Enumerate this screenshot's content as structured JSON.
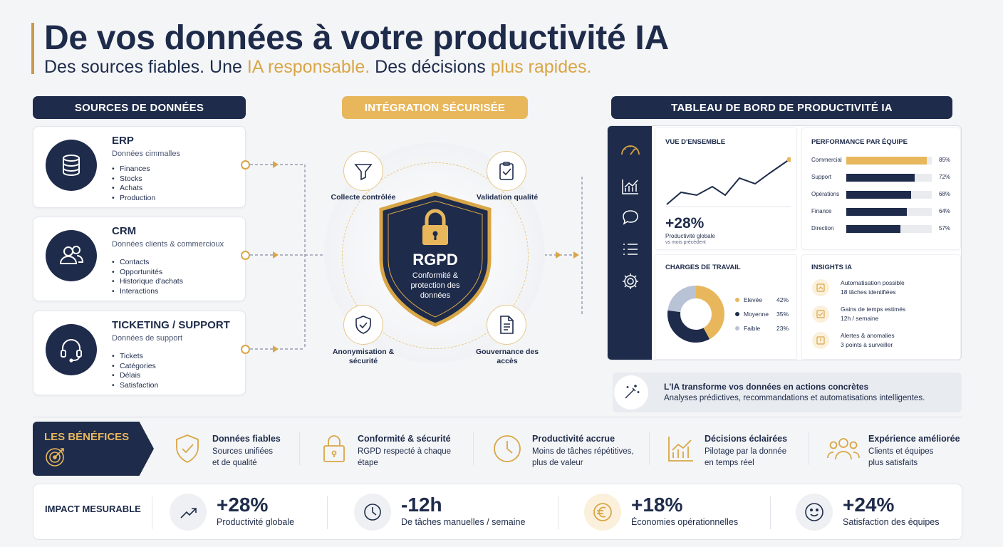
{
  "header": {
    "title": "De vos données à votre productivité IA",
    "subtitle_part1": "Des sources fiables. Une ",
    "subtitle_highlight1": "IA responsable.",
    "subtitle_part2": " Des décisions ",
    "subtitle_highlight2": "plus rapides.",
    "colors": {
      "navy": "#1e2b4a",
      "gold": "#d9a646"
    }
  },
  "sections": {
    "sources": "SOURCES DE DONNÉES",
    "integration": "INTÉGRATION SÉCURISÉE",
    "dashboard": "TABLEAU DE BORD DE PRODUCTIVITÉ IA"
  },
  "sources": [
    {
      "title": "ERP",
      "subtitle": "Données cimmalles",
      "icon": "database-icon",
      "items": [
        "Finances",
        "Stocks",
        "Achats",
        "Production"
      ]
    },
    {
      "title": "CRM",
      "subtitle": "Données clients & commercioux",
      "icon": "users-icon",
      "items": [
        "Contacts",
        "Opportunités",
        "Historique d'achats",
        "Interactions"
      ]
    },
    {
      "title": "TICKETING / SUPPORT",
      "subtitle": "Données de support",
      "icon": "headset-icon",
      "items": [
        "Tickets",
        "Catégories",
        "Délais",
        "Satisfaction"
      ]
    }
  ],
  "integration": {
    "shield_title": "RGPD",
    "shield_text": "Conformité & protection des données",
    "steps": [
      {
        "label": "Collecte contrôlée",
        "icon": "filter-icon"
      },
      {
        "label": "Validation qualité",
        "icon": "clipboard-check-icon"
      },
      {
        "label": "Anonymisation & sécurité",
        "icon": "shield-check-icon"
      },
      {
        "label": "Gouvernance des accès",
        "icon": "document-icon"
      }
    ]
  },
  "dashboard": {
    "overview": {
      "title": "VUE D'ENSEMBLE",
      "value": "+28%",
      "label": "Productivité globale",
      "sublabel": "vs mois précédent"
    },
    "performance": {
      "title": "PERFORMANCE PAR ÉQUIPE",
      "teams": [
        {
          "name": "Commercial",
          "value": 85,
          "label": "85%"
        },
        {
          "name": "Support",
          "value": 72,
          "label": "72%"
        },
        {
          "name": "Opérations",
          "value": 68,
          "label": "68%"
        },
        {
          "name": "Finance",
          "value": 64,
          "label": "64%"
        },
        {
          "name": "Direction",
          "value": 57,
          "label": "57%"
        }
      ]
    },
    "workload": {
      "title": "CHARGES DE TRAVAIL",
      "segments": [
        {
          "name": "Elevée",
          "value": 42,
          "label": "42%",
          "color": "#e8b75c"
        },
        {
          "name": "Moyenne",
          "value": 35,
          "label": "35%",
          "color": "#1e2b4a"
        },
        {
          "name": "Faible",
          "value": 23,
          "label": "23%",
          "color": "#b9c3d6"
        }
      ]
    },
    "insights": {
      "title": "INSIGHTS IA",
      "items": [
        {
          "title": "Automatisation possible",
          "detail": "18 tâches identifiées"
        },
        {
          "title": "Gains de temps estimés",
          "detail": "12h / semaine"
        },
        {
          "title": "Alertes & anomalies",
          "detail": "3 points à surveiller"
        }
      ]
    },
    "side_icons": [
      "gauge-icon",
      "chart-icon",
      "chat-icon",
      "list-icon",
      "settings-icon"
    ]
  },
  "banner": {
    "title": "L'IA transforme vos données en actions concrètes",
    "text": "Analyses prédictives, recommandations et automatisations intelligentes."
  },
  "benefits": {
    "tag": "LES BÉNÉFICES",
    "items": [
      {
        "title": "Données fiables",
        "line1": "Sources unifiées",
        "line2": "et de qualité",
        "icon": "shield-check-icon"
      },
      {
        "title": "Conformité & sécurité",
        "line1": "RGPD respecté à chaque",
        "line2": "étape",
        "icon": "lock-icon"
      },
      {
        "title": "Productivité accrue",
        "line1": "Moins de tâches répétitives,",
        "line2": "plus de valeur",
        "icon": "clock-icon"
      },
      {
        "title": "Décisions éclairées",
        "line1": "Pilotage par la donnée",
        "line2": "en temps réel",
        "icon": "chart-icon"
      },
      {
        "title": "Expérience améliorée",
        "line1": "Clients et équipes",
        "line2": "plus satisfaits",
        "icon": "users-icon"
      }
    ]
  },
  "impact": {
    "label": "IMPACT MESURABLE",
    "items": [
      {
        "value": "+28%",
        "label": "Productivité globale",
        "icon": "trend-up-icon"
      },
      {
        "value": "-12h",
        "label": "De tâches manuelles / semaine",
        "icon": "clock-icon"
      },
      {
        "value": "+18%",
        "label": "Économies opérationnelles",
        "icon": "euro-icon"
      },
      {
        "value": "+24%",
        "label": "Satisfaction des équipes",
        "icon": "smile-icon"
      }
    ]
  }
}
